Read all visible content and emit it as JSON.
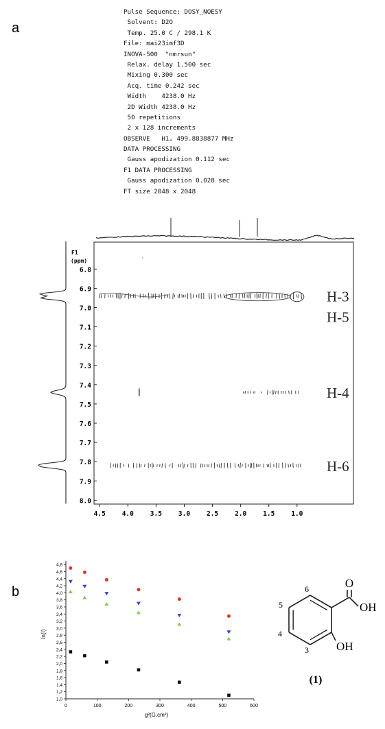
{
  "panel_labels": {
    "a": "a",
    "b": "b"
  },
  "acquisition_parameters": [
    "Pulse Sequence: DOSY_NOESY",
    " Solvent: D2O",
    " Temp. 25.0 C / 298.1 K",
    "File: mai23imf3D",
    "INOVA-500  \"nmrsun\"",
    " Relax. delay 1.500 sec",
    " Mixing 0.300 sec",
    " Acq. time 0.242 sec",
    " Width    4238.0 Hz",
    " 2D Width 4238.0 Hz",
    " 50 repetitions",
    " 2 x 128 increments",
    "OBSERVE   H1, 499.8838877 MHz",
    "DATA PROCESSING",
    " Gauss apodization 0.112 sec",
    "F1 DATA PROCESSING",
    " Gauss apodization 0.028 sec",
    "FT size 2048 x 2048"
  ],
  "chart_data": [
    {
      "type": "contour",
      "panel": "a",
      "f1_label_line1": "F1",
      "f1_label_line2": "(ppm)",
      "y_ticks": [
        "6.8",
        "6.9",
        "7.0",
        "7.1",
        "7.2",
        "7.3",
        "7.4",
        "7.5",
        "7.6",
        "7.7",
        "7.8",
        "7.9",
        "8.0"
      ],
      "x_ticks": [
        "4.5",
        "4.0",
        "3.5",
        "3.0",
        "2.5",
        "2.0",
        "1.5",
        "1.0"
      ],
      "ylim": [
        6.66,
        8.02
      ],
      "xlim": [
        4.6,
        0.0
      ],
      "peaks": [
        {
          "label": "H-3",
          "ppm": 6.94,
          "x_from": 4.5,
          "x_to": 0.9,
          "strength": 1.0
        },
        {
          "label": "H-4",
          "ppm": 7.44,
          "x_from": 1.95,
          "x_to": 0.9,
          "strength": 0.5
        },
        {
          "label": "H-6",
          "ppm": 7.82,
          "x_from": 4.3,
          "x_to": 0.9,
          "strength": 0.85
        }
      ],
      "peak_labels": [
        "H-3",
        "H-5",
        "H-4",
        "H-6"
      ]
    },
    {
      "type": "scatter",
      "panel": "b",
      "xlabel": "g²(G.cm²)",
      "ylabel": "ln(I)",
      "xlim": [
        0,
        600
      ],
      "ylim": [
        1.0,
        4.9
      ],
      "x_ticks": [
        "0",
        "100",
        "200",
        "300",
        "400",
        "500",
        "600"
      ],
      "y_ticks": [
        "1,0",
        "1,2",
        "1,4",
        "1,6",
        "1,8",
        "2,0",
        "2,2",
        "2,4",
        "2,6",
        "2,8",
        "3,0",
        "3,2",
        "3,4",
        "3,6",
        "3,8",
        "4,0",
        "4,2",
        "4,4",
        "4,6",
        "4,8"
      ],
      "series": [
        {
          "marker": "circle",
          "color": "#e8321e",
          "x": [
            15,
            60,
            130,
            232,
            362,
            520
          ],
          "y": [
            4.7,
            4.58,
            4.37,
            4.09,
            3.82,
            3.34
          ]
        },
        {
          "marker": "triangle-down",
          "color": "#3a3ee0",
          "x": [
            15,
            60,
            130,
            232,
            362,
            520
          ],
          "y": [
            4.32,
            4.18,
            3.98,
            3.7,
            3.36,
            2.89
          ]
        },
        {
          "marker": "triangle-up",
          "color": "#7ccd4c",
          "x": [
            15,
            60,
            130,
            232,
            362,
            520
          ],
          "y": [
            4.03,
            3.86,
            3.68,
            3.44,
            3.11,
            2.7
          ]
        },
        {
          "marker": "square",
          "color": "#111111",
          "x": [
            15,
            60,
            130,
            232,
            362,
            520
          ],
          "y": [
            2.33,
            2.22,
            2.04,
            1.82,
            1.47,
            1.1
          ]
        }
      ]
    }
  ],
  "structure": {
    "atom_labels": {
      "O": "O",
      "OH_acid": "OH",
      "OH_phenol": "OH",
      "n6": "6",
      "n5": "5",
      "n4": "4",
      "n3": "3"
    },
    "compound_number": "(1)"
  }
}
